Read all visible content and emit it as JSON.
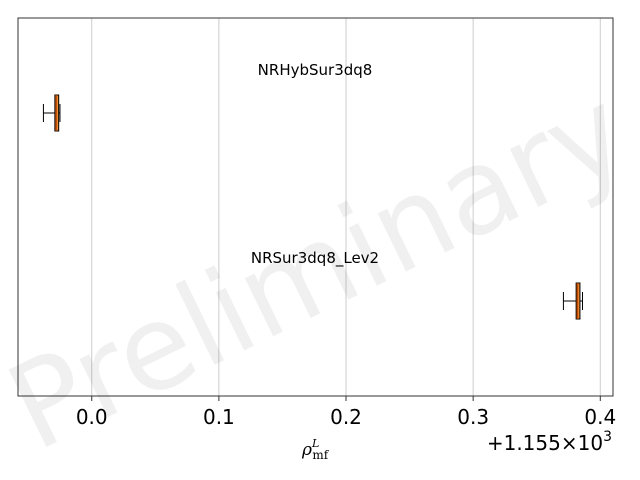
{
  "chart_data": {
    "type": "box",
    "orientation": "horizontal",
    "watermark": "Preliminary",
    "xlabel": {
      "base": "ρ",
      "sub": "mf",
      "sup": "L"
    },
    "x_offset_label": "+1.155×10",
    "x_offset_exponent": "3",
    "xlim": [
      -0.058,
      0.41
    ],
    "xticks": [
      0.0,
      0.1,
      0.2,
      0.3,
      0.4
    ],
    "xtick_labels": [
      "0.0",
      "0.1",
      "0.2",
      "0.3",
      "0.4"
    ],
    "grid": "x",
    "series": [
      {
        "name": "NRHybSur3dq8",
        "whisker_low": -0.038,
        "q1": -0.029,
        "median": -0.028,
        "q3": -0.026,
        "whisker_high": -0.025
      },
      {
        "name": "NRSur3dq8_Lev2",
        "whisker_low": 0.371,
        "q1": 0.381,
        "median": 0.382,
        "q3": 0.384,
        "whisker_high": 0.386
      }
    ],
    "colors": {
      "box_fill": "#f08a33",
      "median": "#b94a00",
      "box_edge": "#000000",
      "grid": "#cccccc",
      "spine": "#333333"
    }
  }
}
